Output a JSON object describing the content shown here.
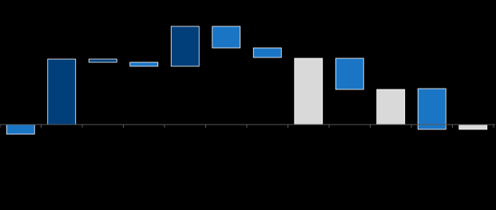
{
  "chart_data": {
    "type": "waterfall",
    "lows": [
      -1.2,
      0,
      7.8,
      7.3,
      7.3,
      9.6,
      8.4,
      0,
      4.4,
      0,
      -0.6,
      -0.6
    ],
    "highs": [
      0,
      8.2,
      8.2,
      7.8,
      12.3,
      12.3,
      9.6,
      8.3,
      8.3,
      4.4,
      4.5,
      0
    ],
    "colors": [
      "#1b75c5",
      "#003f7a",
      "#003f7a",
      "#1b75c5",
      "#003f7a",
      "#1b75c5",
      "#1b75c5",
      "#d9d9d9",
      "#1b75c5",
      "#d9d9d9",
      "#1b75c5",
      "#d9d9d9"
    ],
    "ylim": [
      -10.7,
      15.6
    ]
  }
}
